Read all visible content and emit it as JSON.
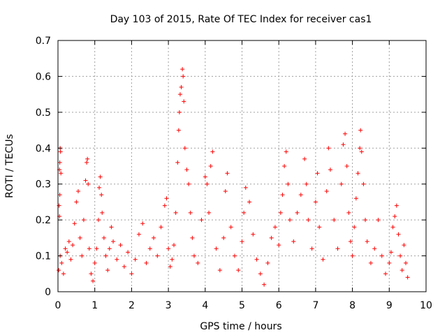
{
  "chart_data": {
    "type": "scatter",
    "title": "Day 103 of 2015, Rate Of TEC Index for receiver cas1",
    "xlabel": "GPS time / hours",
    "ylabel": "ROTI / TECUs",
    "xlim": [
      0,
      10
    ],
    "ylim": [
      0,
      0.7
    ],
    "x_ticks": [
      "0",
      "1",
      "2",
      "3",
      "4",
      "5",
      "6",
      "7",
      "8",
      "9",
      "10"
    ],
    "y_ticks": [
      "0",
      "0.1",
      "0.2",
      "0.3",
      "0.4",
      "0.5",
      "0.6",
      "0.7"
    ],
    "grid": true,
    "marker": "+",
    "colors": {
      "marker": "#ff0000",
      "axes": "#000000",
      "grid": "#a0a0a0"
    },
    "series": [
      {
        "name": "ROTI",
        "points": [
          [
            0.02,
            0.06
          ],
          [
            0.03,
            0.24
          ],
          [
            0.04,
            0.34
          ],
          [
            0.05,
            0.36
          ],
          [
            0.06,
            0.4
          ],
          [
            0.07,
            0.39
          ],
          [
            0.08,
            0.33
          ],
          [
            0.05,
            0.27
          ],
          [
            0.04,
            0.21
          ],
          [
            0.06,
            0.1
          ],
          [
            0.1,
            0.08
          ],
          [
            0.15,
            0.05
          ],
          [
            0.2,
            0.12
          ],
          [
            0.25,
            0.11
          ],
          [
            0.3,
            0.14
          ],
          [
            0.35,
            0.09
          ],
          [
            0.4,
            0.13
          ],
          [
            0.45,
            0.19
          ],
          [
            0.5,
            0.25
          ],
          [
            0.55,
            0.28
          ],
          [
            0.6,
            0.15
          ],
          [
            0.65,
            0.1
          ],
          [
            0.7,
            0.2
          ],
          [
            0.75,
            0.31
          ],
          [
            0.78,
            0.36
          ],
          [
            0.8,
            0.37
          ],
          [
            0.82,
            0.3
          ],
          [
            0.85,
            0.12
          ],
          [
            0.9,
            0.05
          ],
          [
            0.95,
            0.03
          ],
          [
            1.0,
            0.08
          ],
          [
            1.05,
            0.12
          ],
          [
            1.1,
            0.2
          ],
          [
            1.12,
            0.29
          ],
          [
            1.15,
            0.32
          ],
          [
            1.18,
            0.27
          ],
          [
            1.2,
            0.22
          ],
          [
            1.25,
            0.15
          ],
          [
            1.3,
            0.1
          ],
          [
            1.35,
            0.06
          ],
          [
            1.4,
            0.12
          ],
          [
            1.45,
            0.18
          ],
          [
            1.5,
            0.14
          ],
          [
            1.6,
            0.09
          ],
          [
            1.7,
            0.13
          ],
          [
            1.8,
            0.07
          ],
          [
            1.9,
            0.11
          ],
          [
            2.0,
            0.05
          ],
          [
            2.1,
            0.09
          ],
          [
            2.2,
            0.16
          ],
          [
            2.3,
            0.19
          ],
          [
            2.4,
            0.08
          ],
          [
            2.5,
            0.12
          ],
          [
            2.6,
            0.15
          ],
          [
            2.7,
            0.1
          ],
          [
            2.8,
            0.18
          ],
          [
            2.9,
            0.24
          ],
          [
            2.95,
            0.26
          ],
          [
            3.0,
            0.12
          ],
          [
            3.05,
            0.07
          ],
          [
            3.1,
            0.09
          ],
          [
            3.15,
            0.13
          ],
          [
            3.2,
            0.22
          ],
          [
            3.25,
            0.36
          ],
          [
            3.28,
            0.45
          ],
          [
            3.3,
            0.5
          ],
          [
            3.32,
            0.55
          ],
          [
            3.35,
            0.57
          ],
          [
            3.38,
            0.62
          ],
          [
            3.4,
            0.6
          ],
          [
            3.42,
            0.53
          ],
          [
            3.45,
            0.4
          ],
          [
            3.5,
            0.34
          ],
          [
            3.55,
            0.3
          ],
          [
            3.6,
            0.22
          ],
          [
            3.65,
            0.15
          ],
          [
            3.7,
            0.1
          ],
          [
            3.8,
            0.08
          ],
          [
            3.9,
            0.2
          ],
          [
            4.0,
            0.32
          ],
          [
            4.05,
            0.3
          ],
          [
            4.1,
            0.22
          ],
          [
            4.15,
            0.35
          ],
          [
            4.2,
            0.39
          ],
          [
            4.3,
            0.12
          ],
          [
            4.4,
            0.06
          ],
          [
            4.5,
            0.15
          ],
          [
            4.55,
            0.28
          ],
          [
            4.6,
            0.33
          ],
          [
            4.7,
            0.18
          ],
          [
            4.8,
            0.1
          ],
          [
            4.9,
            0.06
          ],
          [
            5.0,
            0.14
          ],
          [
            5.05,
            0.22
          ],
          [
            5.1,
            0.29
          ],
          [
            5.2,
            0.25
          ],
          [
            5.3,
            0.16
          ],
          [
            5.4,
            0.09
          ],
          [
            5.5,
            0.05
          ],
          [
            5.6,
            0.02
          ],
          [
            5.7,
            0.08
          ],
          [
            5.8,
            0.15
          ],
          [
            5.9,
            0.18
          ],
          [
            6.0,
            0.13
          ],
          [
            6.05,
            0.22
          ],
          [
            6.1,
            0.27
          ],
          [
            6.15,
            0.35
          ],
          [
            6.2,
            0.39
          ],
          [
            6.25,
            0.3
          ],
          [
            6.3,
            0.2
          ],
          [
            6.4,
            0.14
          ],
          [
            6.5,
            0.22
          ],
          [
            6.6,
            0.27
          ],
          [
            6.7,
            0.37
          ],
          [
            6.75,
            0.3
          ],
          [
            6.8,
            0.2
          ],
          [
            6.9,
            0.12
          ],
          [
            7.0,
            0.25
          ],
          [
            7.05,
            0.33
          ],
          [
            7.1,
            0.18
          ],
          [
            7.2,
            0.09
          ],
          [
            7.3,
            0.28
          ],
          [
            7.35,
            0.4
          ],
          [
            7.4,
            0.34
          ],
          [
            7.5,
            0.2
          ],
          [
            7.6,
            0.12
          ],
          [
            7.7,
            0.3
          ],
          [
            7.75,
            0.41
          ],
          [
            7.8,
            0.44
          ],
          [
            7.85,
            0.35
          ],
          [
            7.9,
            0.22
          ],
          [
            7.95,
            0.14
          ],
          [
            8.0,
            0.1
          ],
          [
            8.05,
            0.18
          ],
          [
            8.1,
            0.26
          ],
          [
            8.15,
            0.33
          ],
          [
            8.2,
            0.4
          ],
          [
            8.22,
            0.45
          ],
          [
            8.25,
            0.39
          ],
          [
            8.3,
            0.3
          ],
          [
            8.35,
            0.2
          ],
          [
            8.4,
            0.14
          ],
          [
            8.5,
            0.08
          ],
          [
            8.6,
            0.12
          ],
          [
            8.7,
            0.2
          ],
          [
            8.8,
            0.1
          ],
          [
            8.9,
            0.05
          ],
          [
            9.0,
            0.08
          ],
          [
            9.05,
            0.11
          ],
          [
            9.1,
            0.18
          ],
          [
            9.15,
            0.21
          ],
          [
            9.2,
            0.24
          ],
          [
            9.25,
            0.16
          ],
          [
            9.3,
            0.1
          ],
          [
            9.35,
            0.06
          ],
          [
            9.4,
            0.13
          ],
          [
            9.45,
            0.08
          ],
          [
            9.5,
            0.04
          ]
        ]
      }
    ]
  }
}
